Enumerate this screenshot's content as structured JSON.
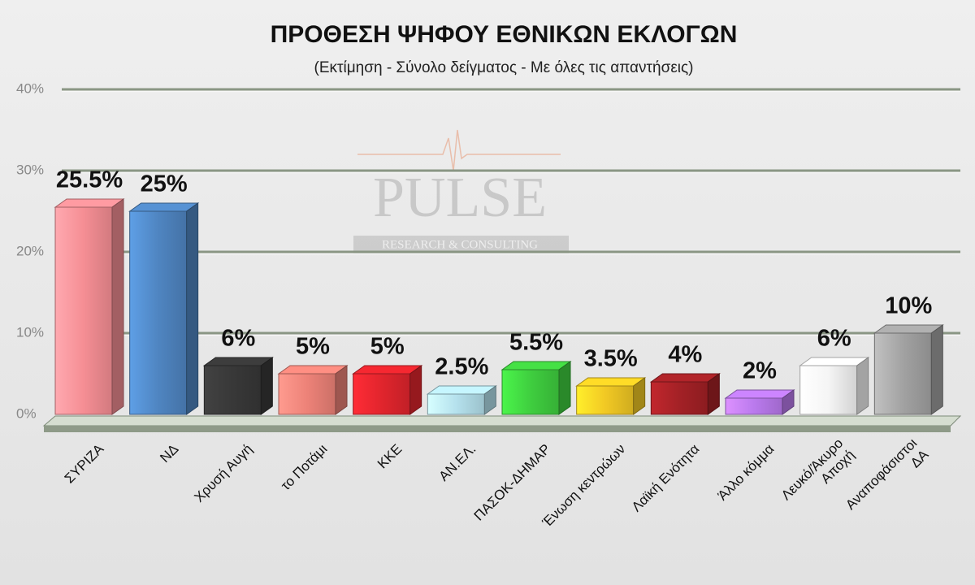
{
  "chart_data": {
    "type": "bar3d",
    "title": "ΠΡΟΘΕΣΗ ΨΗΦΟΥ ΕΘΝΙΚΩΝ ΕΚΛΟΓΩΝ",
    "subtitle": "(Εκτίμηση - Σύνολο δείγματος - Με όλες τις απαντήσεις)",
    "watermark": [
      "PULSE",
      "RESEARCH & CONSULTING"
    ],
    "categories": [
      "ΣΥΡΙΖΑ",
      "ΝΔ",
      "Χρυσή Αυγή",
      "το Ποτάμι",
      "ΚΚΕ",
      "ΑΝ.ΕΛ.",
      "ΠΑΣΟΚ-ΔΗΜΑΡ",
      "Ένωση κεντρώων",
      "Λαϊκή Ενότητα",
      "Άλλο κόμμα",
      "Λευκό/Άκυρο\nΑποχή",
      "Αναποφάσιστοι\nΔΑ"
    ],
    "values": [
      25.5,
      25,
      6,
      5,
      5,
      2.5,
      5.5,
      3.5,
      4,
      2,
      6,
      10
    ],
    "value_labels": [
      "25.5%",
      "25%",
      "6%",
      "5%",
      "5%",
      "2.5%",
      "5.5%",
      "3.5%",
      "4%",
      "2%",
      "6%",
      "10%"
    ],
    "colors": [
      "#e9878d",
      "#4b7fb8",
      "#353535",
      "#e27c72",
      "#d6232b",
      "#acd6e2",
      "#3cc43c",
      "#e6bf22",
      "#9b1f24",
      "#b174e2",
      "#e9e9e9",
      "#9a9a9a"
    ],
    "ylim": [
      0,
      40
    ],
    "yticks": [
      {
        "value": 0,
        "label": "0%"
      },
      {
        "value": 10,
        "label": "10%"
      },
      {
        "value": 20,
        "label": "20%"
      },
      {
        "value": 30,
        "label": "30%"
      },
      {
        "value": 40,
        "label": "40%"
      }
    ],
    "grid": true
  }
}
